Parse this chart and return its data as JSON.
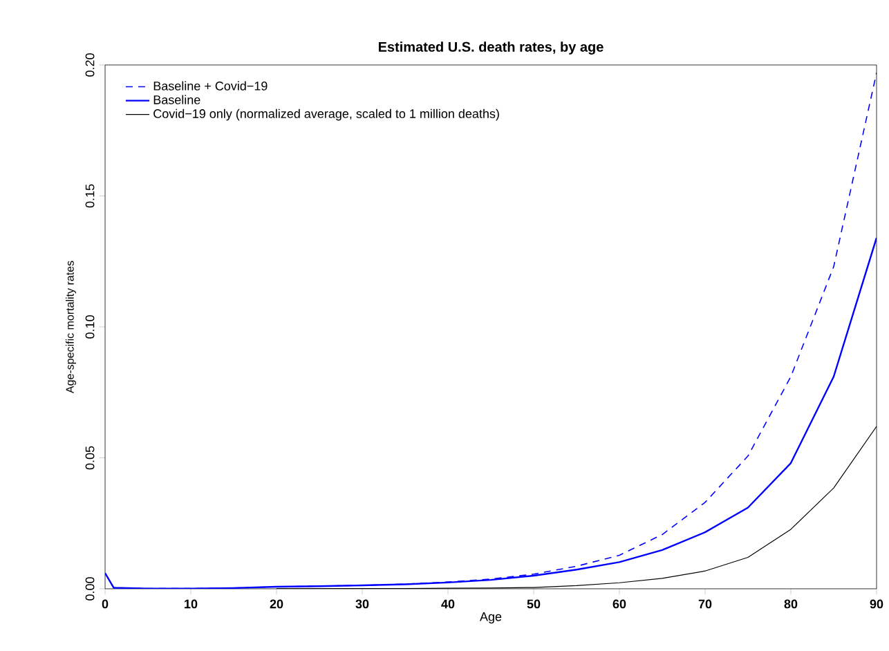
{
  "chart_data": {
    "type": "line",
    "title": "Estimated U.S. death rates, by age",
    "xlabel": "Age",
    "ylabel": "Age-specific mortality rates",
    "x": [
      0,
      1,
      5,
      10,
      15,
      20,
      25,
      30,
      35,
      40,
      45,
      50,
      55,
      60,
      65,
      70,
      75,
      80,
      85,
      90
    ],
    "series": [
      {
        "name": "Baseline + Covid−19",
        "color": "#0000ff",
        "line_style": "dashed",
        "values": [
          0.006,
          0.0004,
          0.0001,
          0.0001,
          0.0003,
          0.0008,
          0.001,
          0.0013,
          0.0018,
          0.0026,
          0.0037,
          0.0056,
          0.0086,
          0.0128,
          0.0207,
          0.033,
          0.0507,
          0.081,
          0.123,
          0.197
        ]
      },
      {
        "name": "Baseline",
        "color": "#0000ff",
        "line_style": "solid",
        "values": [
          0.006,
          0.0004,
          0.0001,
          0.0001,
          0.0003,
          0.0008,
          0.001,
          0.0013,
          0.0017,
          0.0024,
          0.0034,
          0.005,
          0.0073,
          0.0102,
          0.0148,
          0.0216,
          0.031,
          0.048,
          0.081,
          0.134
        ]
      },
      {
        "name": "Covid−19 only (normalized average, scaled to 1 million deaths)",
        "color": "#000000",
        "line_style": "solid",
        "values": [
          null,
          null,
          null,
          null,
          null,
          0.0001,
          0.0001,
          0.0001,
          0.0001,
          0.0002,
          0.0003,
          0.0005,
          0.0012,
          0.0023,
          0.004,
          0.0068,
          0.012,
          0.0227,
          0.0385,
          0.062
        ]
      }
    ],
    "xlim": [
      0,
      90
    ],
    "ylim": [
      0,
      0.2
    ],
    "xticks": [
      0,
      10,
      20,
      30,
      40,
      50,
      60,
      70,
      80,
      90
    ],
    "yticks": [
      {
        "value": 0,
        "label": "0.00"
      },
      {
        "value": 0.05,
        "label": "0.05"
      },
      {
        "value": 0.1,
        "label": "0.10"
      },
      {
        "value": 0.15,
        "label": "0.15"
      },
      {
        "value": 0.2,
        "label": "0.20"
      }
    ],
    "grid": false,
    "legend": "top left",
    "marker": "none"
  }
}
